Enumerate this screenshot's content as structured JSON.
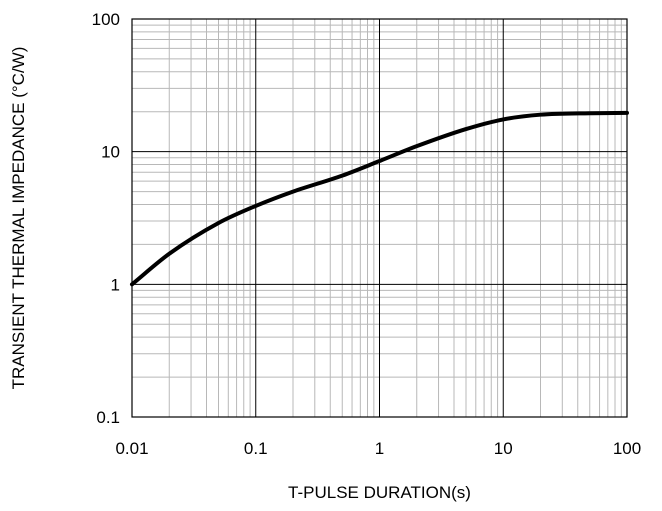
{
  "chart_data": {
    "type": "line",
    "title": "",
    "xlabel": "T-PULSE DURATION(s)",
    "ylabel": "TRANSIENT THERMAL IMPEDANCE (°C/W)",
    "x_scale": "log",
    "y_scale": "log",
    "xlim": [
      0.01,
      100
    ],
    "ylim": [
      0.1,
      100
    ],
    "x_ticks": [
      0.01,
      0.1,
      1,
      10,
      100
    ],
    "x_tick_labels": [
      "0.01",
      "0.1",
      "1",
      "10",
      "100"
    ],
    "y_ticks": [
      0.1,
      1,
      10,
      100
    ],
    "y_tick_labels": [
      "0.1",
      "1",
      "10",
      "100"
    ],
    "grid": true,
    "grid_minor": true,
    "legend": "none",
    "series": [
      {
        "color": "#000000",
        "x": [
          0.01,
          0.02,
          0.05,
          0.1,
          0.2,
          0.5,
          1,
          2,
          5,
          10,
          20,
          50,
          100
        ],
        "y": [
          1.0,
          1.7,
          2.9,
          3.9,
          5.0,
          6.6,
          8.5,
          11.0,
          14.8,
          17.5,
          19.0,
          19.5,
          19.6
        ]
      }
    ]
  }
}
